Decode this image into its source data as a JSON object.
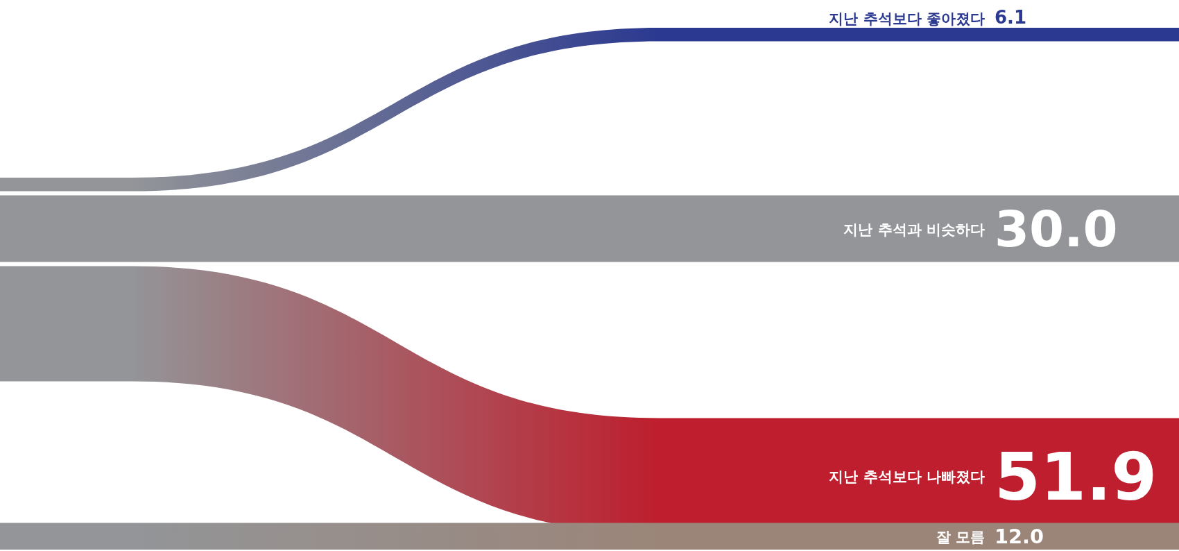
{
  "chart_data": {
    "type": "other",
    "categories": [
      "지난 추석보다 좋아졌다",
      "지난 추석과 비슷하다",
      "지난 추석보다 나빠졌다",
      "잘 모름"
    ],
    "values": [
      6.1,
      30.0,
      51.9,
      12.0
    ],
    "value_labels": [
      "6.1",
      "30.0",
      "51.9",
      "12.0"
    ],
    "colors": [
      "#2b3990",
      "#939598",
      "#be1e2d",
      "#9b8579"
    ]
  }
}
